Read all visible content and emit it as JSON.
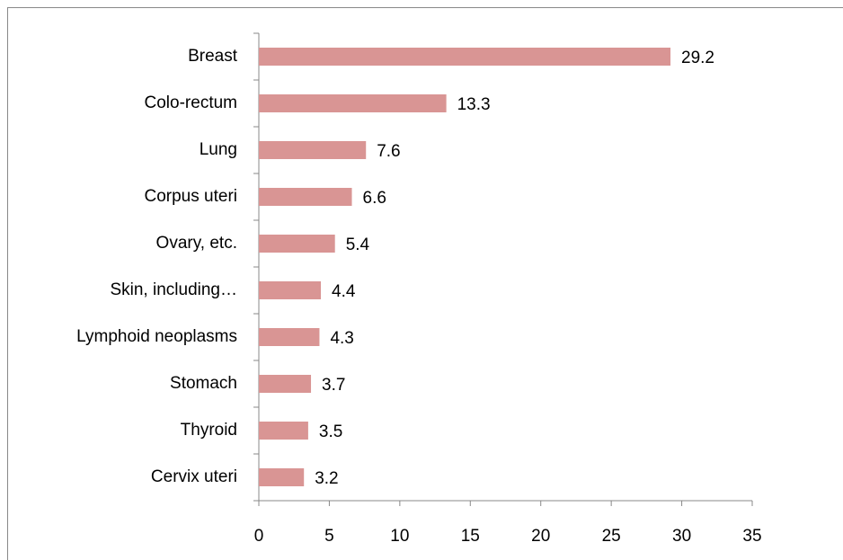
{
  "chart_data": {
    "type": "bar",
    "orientation": "horizontal",
    "categories": [
      "Breast",
      "Colo-rectum",
      "Lung",
      "Corpus uteri",
      "Ovary, etc.",
      "Skin, including…",
      "Lymphoid neoplasms",
      "Stomach",
      "Thyroid",
      "Cervix uteri"
    ],
    "values": [
      29.2,
      13.3,
      7.6,
      6.6,
      5.4,
      4.4,
      4.3,
      3.7,
      3.5,
      3.2
    ],
    "color": "#d99594",
    "xlim": [
      0,
      35
    ],
    "xticks": [
      0,
      5,
      10,
      15,
      20,
      25,
      30,
      35
    ],
    "grid": false
  }
}
